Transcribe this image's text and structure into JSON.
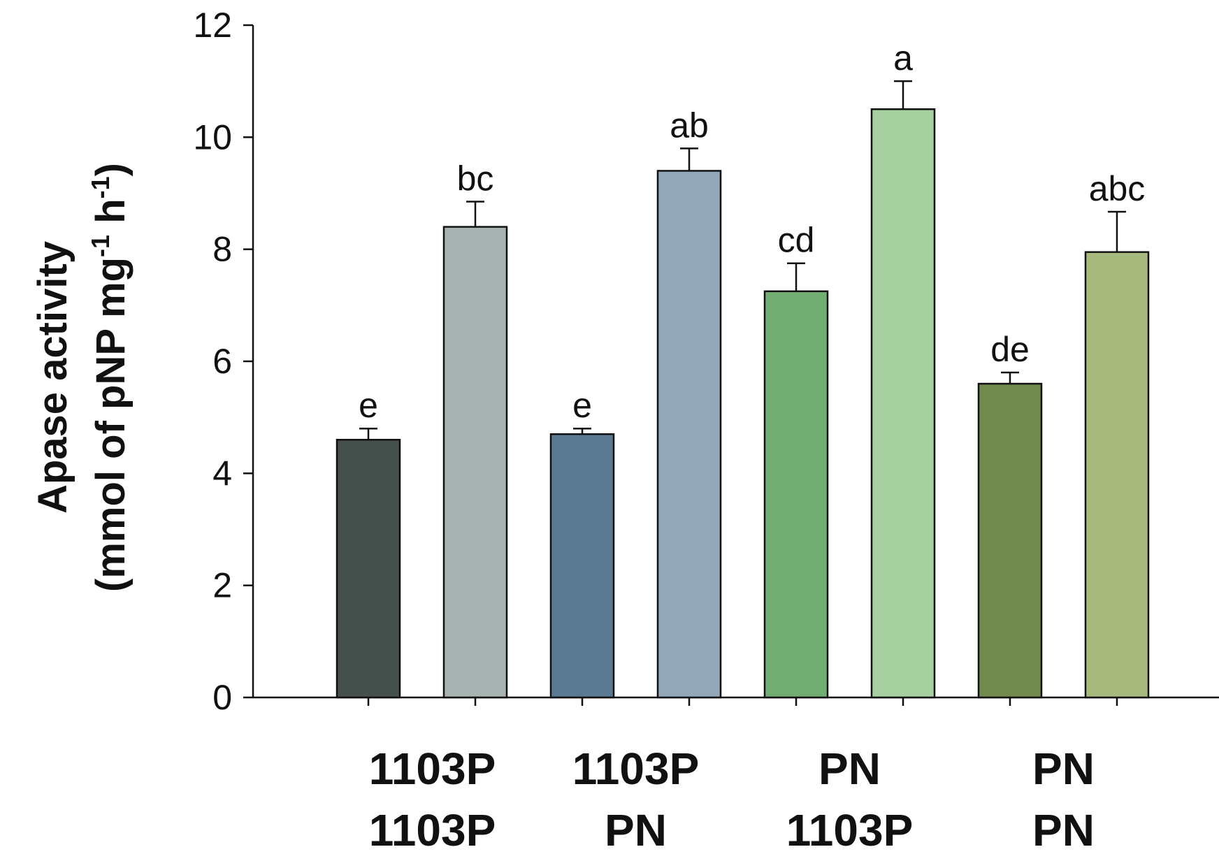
{
  "chart_data": {
    "type": "bar",
    "title": "",
    "xlabel": "",
    "ylabel": {
      "line1": "Apase activity",
      "line2_pre": "(mmol of pNP mg",
      "sup1": "-1",
      "line2_mid": " h",
      "sup2": "-1",
      "line2_post": ")"
    },
    "ylim": [
      0,
      12
    ],
    "yticks": [
      "0",
      "2",
      "4",
      "6",
      "8",
      "10",
      "12"
    ],
    "groups": [
      {
        "line1": "1103P",
        "line2": "1103P"
      },
      {
        "line1": "1103P",
        "line2": "PN"
      },
      {
        "line1": "PN",
        "line2": "1103P"
      },
      {
        "line1": "PN",
        "line2": "PN"
      }
    ],
    "bars": [
      {
        "value": 4.6,
        "error": 0.2,
        "letter": "e",
        "color": "#454f4c"
      },
      {
        "value": 8.4,
        "error": 0.45,
        "letter": "bc",
        "color": "#a8b2b0"
      },
      {
        "value": 4.7,
        "error": 0.1,
        "letter": "e",
        "color": "#597a92"
      },
      {
        "value": 9.4,
        "error": 0.4,
        "letter": "ab",
        "color": "#92a7b8"
      },
      {
        "value": 7.25,
        "error": 0.5,
        "letter": "cd",
        "color": "#72ad72"
      },
      {
        "value": 10.5,
        "error": 0.5,
        "letter": "a",
        "color": "#a6d0a0"
      },
      {
        "value": 5.6,
        "error": 0.2,
        "letter": "de",
        "color": "#728a4e"
      },
      {
        "value": 7.95,
        "error": 0.72,
        "letter": "abc",
        "color": "#a8b97e"
      }
    ]
  }
}
